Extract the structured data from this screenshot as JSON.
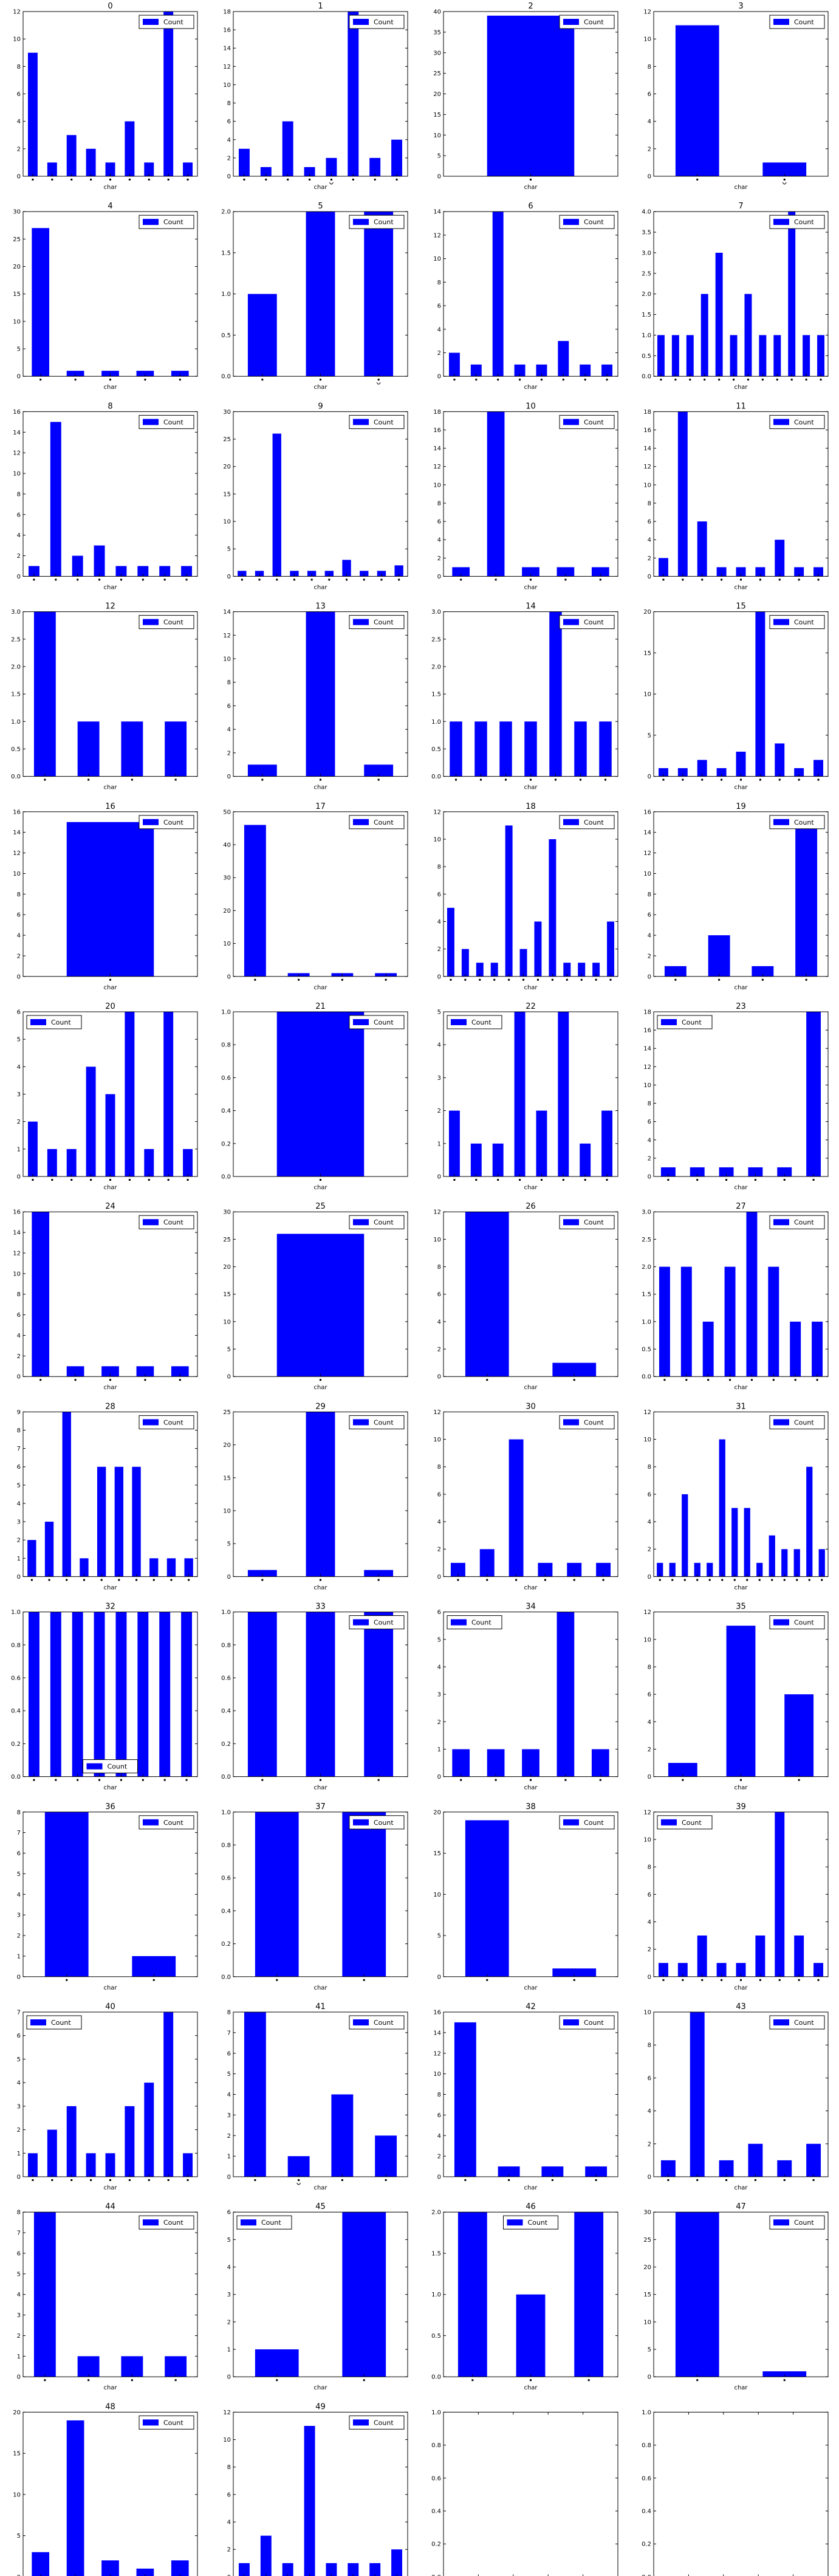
{
  "figure": {
    "series_name": "Count",
    "xlabel": "char",
    "bar_color": "#0000ff",
    "grid": false,
    "legend_placement": "upper right"
  },
  "chart_data": [
    {
      "type": "bar",
      "title": "0",
      "ylim": [
        0,
        12
      ],
      "yticks": [
        0,
        2,
        4,
        6,
        8,
        10,
        12
      ],
      "values": [
        9,
        1,
        3,
        2,
        1,
        4,
        1,
        12,
        1
      ]
    },
    {
      "type": "bar",
      "title": "1",
      "ylim": [
        0,
        18
      ],
      "yticks": [
        0,
        2,
        4,
        6,
        8,
        10,
        12,
        14,
        16,
        18
      ],
      "values": [
        3,
        1,
        6,
        1,
        2,
        18,
        2,
        4
      ],
      "xtick_mark_index": 4
    },
    {
      "type": "bar",
      "title": "2",
      "ylim": [
        0,
        40
      ],
      "yticks": [
        0,
        5,
        10,
        15,
        20,
        25,
        30,
        35,
        40
      ],
      "values": [
        39
      ]
    },
    {
      "type": "bar",
      "title": "3",
      "ylim": [
        0,
        12
      ],
      "yticks": [
        0,
        2,
        4,
        6,
        8,
        10,
        12
      ],
      "values": [
        11,
        1
      ],
      "xtick_mark_index": 1
    },
    {
      "type": "bar",
      "title": "4",
      "ylim": [
        0,
        30
      ],
      "yticks": [
        0,
        5,
        10,
        15,
        20,
        25,
        30
      ],
      "values": [
        27,
        1,
        1,
        1,
        1
      ]
    },
    {
      "type": "bar",
      "title": "5",
      "ylim": [
        0,
        2.0
      ],
      "yticks": [
        0.0,
        0.5,
        1.0,
        1.5,
        2.0
      ],
      "values": [
        1,
        2,
        2
      ],
      "xtick_mark_index": 2
    },
    {
      "type": "bar",
      "title": "6",
      "ylim": [
        0,
        14
      ],
      "yticks": [
        0,
        2,
        4,
        6,
        8,
        10,
        12,
        14
      ],
      "values": [
        2,
        1,
        14,
        1,
        1,
        3,
        1,
        1
      ]
    },
    {
      "type": "bar",
      "title": "7",
      "ylim": [
        0,
        4.0
      ],
      "yticks": [
        0.0,
        0.5,
        1.0,
        1.5,
        2.0,
        2.5,
        3.0,
        3.5,
        4.0
      ],
      "values": [
        1,
        1,
        1,
        2,
        3,
        1,
        2,
        1,
        1,
        4,
        1,
        1
      ]
    },
    {
      "type": "bar",
      "title": "8",
      "ylim": [
        0,
        16
      ],
      "yticks": [
        0,
        2,
        4,
        6,
        8,
        10,
        12,
        14,
        16
      ],
      "values": [
        1,
        15,
        2,
        3,
        1,
        1,
        1,
        1
      ]
    },
    {
      "type": "bar",
      "title": "9",
      "ylim": [
        0,
        30
      ],
      "yticks": [
        0,
        5,
        10,
        15,
        20,
        25,
        30
      ],
      "values": [
        1,
        1,
        26,
        1,
        1,
        1,
        3,
        1,
        1,
        2
      ]
    },
    {
      "type": "bar",
      "title": "10",
      "ylim": [
        0,
        18
      ],
      "yticks": [
        0,
        2,
        4,
        6,
        8,
        10,
        12,
        14,
        16,
        18
      ],
      "values": [
        1,
        18,
        1,
        1,
        1
      ]
    },
    {
      "type": "bar",
      "title": "11",
      "ylim": [
        0,
        18
      ],
      "yticks": [
        0,
        2,
        4,
        6,
        8,
        10,
        12,
        14,
        16,
        18
      ],
      "values": [
        2,
        18,
        6,
        1,
        1,
        1,
        4,
        1,
        1
      ]
    },
    {
      "type": "bar",
      "title": "12",
      "ylim": [
        0,
        3.0
      ],
      "yticks": [
        0.0,
        0.5,
        1.0,
        1.5,
        2.0,
        2.5,
        3.0
      ],
      "values": [
        3,
        1,
        1,
        1
      ]
    },
    {
      "type": "bar",
      "title": "13",
      "ylim": [
        0,
        14
      ],
      "yticks": [
        0,
        2,
        4,
        6,
        8,
        10,
        12,
        14
      ],
      "values": [
        1,
        14,
        1
      ]
    },
    {
      "type": "bar",
      "title": "14",
      "ylim": [
        0,
        3.0
      ],
      "yticks": [
        0.0,
        0.5,
        1.0,
        1.5,
        2.0,
        2.5,
        3.0
      ],
      "values": [
        1,
        1,
        1,
        1,
        3,
        1,
        1
      ]
    },
    {
      "type": "bar",
      "title": "15",
      "ylim": [
        0,
        20
      ],
      "yticks": [
        0,
        5,
        10,
        15,
        20
      ],
      "values": [
        1,
        1,
        2,
        1,
        3,
        20,
        4,
        1,
        2
      ]
    },
    {
      "type": "bar",
      "title": "16",
      "ylim": [
        0,
        16
      ],
      "yticks": [
        0,
        2,
        4,
        6,
        8,
        10,
        12,
        14,
        16
      ],
      "values": [
        15
      ]
    },
    {
      "type": "bar",
      "title": "17",
      "ylim": [
        0,
        50
      ],
      "yticks": [
        0,
        10,
        20,
        30,
        40,
        50
      ],
      "values": [
        46,
        1,
        1,
        1
      ]
    },
    {
      "type": "bar",
      "title": "18",
      "ylim": [
        0,
        12
      ],
      "yticks": [
        0,
        2,
        4,
        6,
        8,
        10,
        12
      ],
      "values": [
        5,
        2,
        1,
        1,
        11,
        2,
        4,
        10,
        1,
        1,
        1,
        4
      ]
    },
    {
      "type": "bar",
      "title": "19",
      "ylim": [
        0,
        16
      ],
      "yticks": [
        0,
        2,
        4,
        6,
        8,
        10,
        12,
        14,
        16
      ],
      "values": [
        1,
        4,
        1,
        15
      ]
    },
    {
      "type": "bar",
      "title": "20",
      "ylim": [
        0,
        6
      ],
      "yticks": [
        0,
        1,
        2,
        3,
        4,
        5,
        6
      ],
      "values": [
        2,
        1,
        1,
        4,
        3,
        6,
        1,
        6,
        1
      ],
      "legend_placement": "upper left"
    },
    {
      "type": "bar",
      "title": "21",
      "ylim": [
        0,
        1.0
      ],
      "yticks": [
        0.0,
        0.2,
        0.4,
        0.6,
        0.8,
        1.0
      ],
      "values": [
        1
      ]
    },
    {
      "type": "bar",
      "title": "22",
      "ylim": [
        0,
        5
      ],
      "yticks": [
        0,
        1,
        2,
        3,
        4,
        5
      ],
      "values": [
        2,
        1,
        1,
        5,
        2,
        5,
        1,
        2
      ],
      "legend_placement": "upper left"
    },
    {
      "type": "bar",
      "title": "23",
      "ylim": [
        0,
        18
      ],
      "yticks": [
        0,
        2,
        4,
        6,
        8,
        10,
        12,
        14,
        16,
        18
      ],
      "values": [
        1,
        1,
        1,
        1,
        1,
        18
      ],
      "legend_placement": "upper left"
    },
    {
      "type": "bar",
      "title": "24",
      "ylim": [
        0,
        16
      ],
      "yticks": [
        0,
        2,
        4,
        6,
        8,
        10,
        12,
        14,
        16
      ],
      "values": [
        16,
        1,
        1,
        1,
        1
      ]
    },
    {
      "type": "bar",
      "title": "25",
      "ylim": [
        0,
        30
      ],
      "yticks": [
        0,
        5,
        10,
        15,
        20,
        25,
        30
      ],
      "values": [
        26
      ]
    },
    {
      "type": "bar",
      "title": "26",
      "ylim": [
        0,
        12
      ],
      "yticks": [
        0,
        2,
        4,
        6,
        8,
        10,
        12
      ],
      "values": [
        12,
        1
      ]
    },
    {
      "type": "bar",
      "title": "27",
      "ylim": [
        0,
        3.0
      ],
      "yticks": [
        0.0,
        0.5,
        1.0,
        1.5,
        2.0,
        2.5,
        3.0
      ],
      "values": [
        2,
        2,
        1,
        2,
        3,
        2,
        1,
        1
      ]
    },
    {
      "type": "bar",
      "title": "28",
      "ylim": [
        0,
        9
      ],
      "yticks": [
        0,
        1,
        2,
        3,
        4,
        5,
        6,
        7,
        8,
        9
      ],
      "values": [
        2,
        3,
        9,
        1,
        6,
        6,
        6,
        1,
        1,
        1
      ]
    },
    {
      "type": "bar",
      "title": "29",
      "ylim": [
        0,
        25
      ],
      "yticks": [
        0,
        5,
        10,
        15,
        20,
        25
      ],
      "values": [
        1,
        25,
        1
      ]
    },
    {
      "type": "bar",
      "title": "30",
      "ylim": [
        0,
        12
      ],
      "yticks": [
        0,
        2,
        4,
        6,
        8,
        10,
        12
      ],
      "values": [
        1,
        2,
        10,
        1,
        1,
        1
      ]
    },
    {
      "type": "bar",
      "title": "31",
      "ylim": [
        0,
        12
      ],
      "yticks": [
        0,
        2,
        4,
        6,
        8,
        10,
        12
      ],
      "values": [
        1,
        1,
        6,
        1,
        1,
        10,
        5,
        5,
        1,
        3,
        2,
        2,
        8,
        2
      ]
    },
    {
      "type": "bar",
      "title": "32",
      "ylim": [
        0,
        1.0
      ],
      "yticks": [
        0.0,
        0.2,
        0.4,
        0.6,
        0.8,
        1.0
      ],
      "values": [
        1,
        1,
        1,
        1,
        1,
        1,
        1,
        1
      ],
      "legend_placement": "lower center"
    },
    {
      "type": "bar",
      "title": "33",
      "ylim": [
        0,
        1.0
      ],
      "yticks": [
        0.0,
        0.2,
        0.4,
        0.6,
        0.8,
        1.0
      ],
      "values": [
        1,
        1,
        1
      ]
    },
    {
      "type": "bar",
      "title": "34",
      "ylim": [
        0,
        6
      ],
      "yticks": [
        0,
        1,
        2,
        3,
        4,
        5,
        6
      ],
      "values": [
        1,
        1,
        1,
        6,
        1
      ],
      "legend_placement": "upper left"
    },
    {
      "type": "bar",
      "title": "35",
      "ylim": [
        0,
        12
      ],
      "yticks": [
        0,
        2,
        4,
        6,
        8,
        10,
        12
      ],
      "values": [
        1,
        11,
        6
      ]
    },
    {
      "type": "bar",
      "title": "36",
      "ylim": [
        0,
        8
      ],
      "yticks": [
        0,
        1,
        2,
        3,
        4,
        5,
        6,
        7,
        8
      ],
      "values": [
        8,
        1
      ]
    },
    {
      "type": "bar",
      "title": "37",
      "ylim": [
        0,
        1.0
      ],
      "yticks": [
        0.0,
        0.2,
        0.4,
        0.6,
        0.8,
        1.0
      ],
      "values": [
        1,
        1
      ]
    },
    {
      "type": "bar",
      "title": "38",
      "ylim": [
        0,
        20
      ],
      "yticks": [
        0,
        5,
        10,
        15,
        20
      ],
      "values": [
        19,
        1
      ]
    },
    {
      "type": "bar",
      "title": "39",
      "ylim": [
        0,
        12
      ],
      "yticks": [
        0,
        2,
        4,
        6,
        8,
        10,
        12
      ],
      "values": [
        1,
        1,
        3,
        1,
        1,
        3,
        12,
        3,
        1
      ],
      "legend_placement": "upper left"
    },
    {
      "type": "bar",
      "title": "40",
      "ylim": [
        0,
        7
      ],
      "yticks": [
        0,
        1,
        2,
        3,
        4,
        5,
        6,
        7
      ],
      "values": [
        1,
        2,
        3,
        1,
        1,
        3,
        4,
        7,
        1
      ],
      "legend_placement": "upper left"
    },
    {
      "type": "bar",
      "title": "41",
      "ylim": [
        0,
        8
      ],
      "yticks": [
        0,
        1,
        2,
        3,
        4,
        5,
        6,
        7,
        8
      ],
      "values": [
        8,
        1,
        4,
        2
      ],
      "xtick_mark_index": 1
    },
    {
      "type": "bar",
      "title": "42",
      "ylim": [
        0,
        16
      ],
      "yticks": [
        0,
        2,
        4,
        6,
        8,
        10,
        12,
        14,
        16
      ],
      "values": [
        15,
        1,
        1,
        1
      ]
    },
    {
      "type": "bar",
      "title": "43",
      "ylim": [
        0,
        10
      ],
      "yticks": [
        0,
        2,
        4,
        6,
        8,
        10
      ],
      "values": [
        1,
        10,
        1,
        2,
        1,
        2
      ]
    },
    {
      "type": "bar",
      "title": "44",
      "ylim": [
        0,
        8
      ],
      "yticks": [
        0,
        1,
        2,
        3,
        4,
        5,
        6,
        7,
        8
      ],
      "values": [
        8,
        1,
        1,
        1
      ]
    },
    {
      "type": "bar",
      "title": "45",
      "ylim": [
        0,
        6
      ],
      "yticks": [
        0,
        1,
        2,
        3,
        4,
        5,
        6
      ],
      "values": [
        1,
        6
      ],
      "legend_placement": "upper left"
    },
    {
      "type": "bar",
      "title": "46",
      "ylim": [
        0,
        2.0
      ],
      "yticks": [
        0.0,
        0.5,
        1.0,
        1.5,
        2.0
      ],
      "values": [
        2,
        1,
        2
      ],
      "legend_placement": "upper center"
    },
    {
      "type": "bar",
      "title": "47",
      "ylim": [
        0,
        30
      ],
      "yticks": [
        0,
        5,
        10,
        15,
        20,
        25,
        30
      ],
      "values": [
        30,
        1
      ]
    },
    {
      "type": "bar",
      "title": "48",
      "ylim": [
        0,
        20
      ],
      "yticks": [
        0,
        5,
        10,
        15,
        20
      ],
      "values": [
        3,
        19,
        2,
        1,
        2
      ]
    },
    {
      "type": "bar",
      "title": "49",
      "ylim": [
        0,
        12
      ],
      "yticks": [
        0,
        2,
        4,
        6,
        8,
        10,
        12
      ],
      "values": [
        1,
        3,
        1,
        11,
        1,
        1,
        1,
        2
      ]
    },
    {
      "type": "empty",
      "title": "",
      "ylim": [
        0,
        1.0
      ],
      "xlim": [
        0,
        1.0
      ],
      "yticks": [
        0.0,
        0.2,
        0.4,
        0.6,
        0.8,
        1.0
      ],
      "xticks": [
        0.0,
        0.2,
        0.4,
        0.6,
        0.8,
        1.0
      ]
    },
    {
      "type": "empty",
      "title": "",
      "ylim": [
        0,
        1.0
      ],
      "xlim": [
        0,
        1.0
      ],
      "yticks": [
        0.0,
        0.2,
        0.4,
        0.6,
        0.8,
        1.0
      ],
      "xticks": [
        0.0,
        0.2,
        0.4,
        0.6,
        0.8,
        1.0
      ]
    }
  ]
}
